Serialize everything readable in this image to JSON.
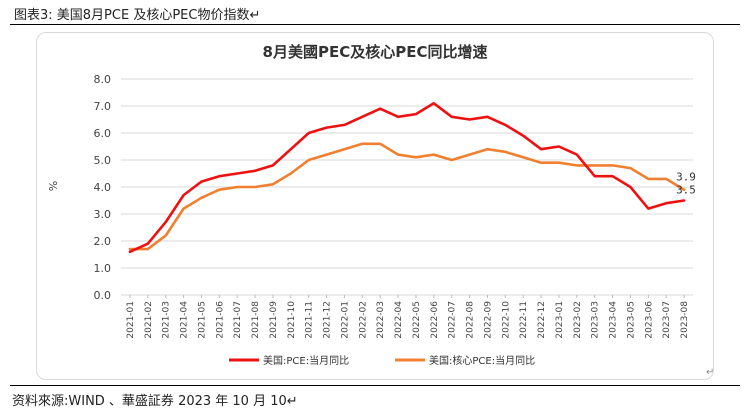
{
  "caption": "图表3:  美国8月PCE 及核心PEC物价指数",
  "caption_mark": "↵",
  "source": "资料來源:WIND 、華盛証券 2023 年 10 月 10",
  "source_mark": "↵",
  "return_mark": "↵",
  "colors": {
    "red": "#ee1111",
    "orange": "#f08030",
    "grid": "#d9d9d9"
  },
  "chart_data": {
    "type": "line",
    "title": "8月美國PEC及核心PEC同比增速",
    "ylabel": "%",
    "xlabel": "",
    "ylim": [
      0,
      8
    ],
    "yticks": [
      "0.0",
      "1.0",
      "2.0",
      "3.0",
      "4.0",
      "5.0",
      "6.0",
      "7.0",
      "8.0"
    ],
    "grid": true,
    "legend_position": "bottom",
    "categories": [
      "2021-01",
      "2021-02",
      "2021-03",
      "2021-04",
      "2021-05",
      "2021-06",
      "2021-07",
      "2021-08",
      "2021-09",
      "2021-10",
      "2021-11",
      "2021-12",
      "2022-01",
      "2022-02",
      "2022-03",
      "2022-04",
      "2022-05",
      "2022-06",
      "2022-07",
      "2022-08",
      "2022-09",
      "2022-10",
      "2022-11",
      "2022-12",
      "2023-01",
      "2023-02",
      "2023-03",
      "2023-04",
      "2023-05",
      "2023-06",
      "2023-07",
      "2023-08"
    ],
    "series": [
      {
        "name": "美国:PCE:当月同比",
        "color": "#ee1111",
        "values": [
          1.6,
          1.9,
          2.7,
          3.7,
          4.2,
          4.4,
          4.5,
          4.6,
          4.8,
          5.4,
          6.0,
          6.2,
          6.3,
          6.6,
          6.9,
          6.6,
          6.7,
          7.1,
          6.6,
          6.5,
          6.6,
          6.3,
          5.9,
          5.4,
          5.5,
          5.2,
          4.4,
          4.4,
          4.0,
          3.2,
          3.4,
          3.5
        ],
        "end_label": "3.5"
      },
      {
        "name": "美国:核心PCE:当月同比",
        "color": "#f08030",
        "values": [
          1.7,
          1.7,
          2.2,
          3.2,
          3.6,
          3.9,
          4.0,
          4.0,
          4.1,
          4.5,
          5.0,
          5.2,
          5.4,
          5.6,
          5.6,
          5.2,
          5.1,
          5.2,
          5.0,
          5.2,
          5.4,
          5.3,
          5.1,
          4.9,
          4.9,
          4.8,
          4.8,
          4.8,
          4.7,
          4.3,
          4.3,
          3.9
        ],
        "end_label": "3.9"
      }
    ]
  }
}
